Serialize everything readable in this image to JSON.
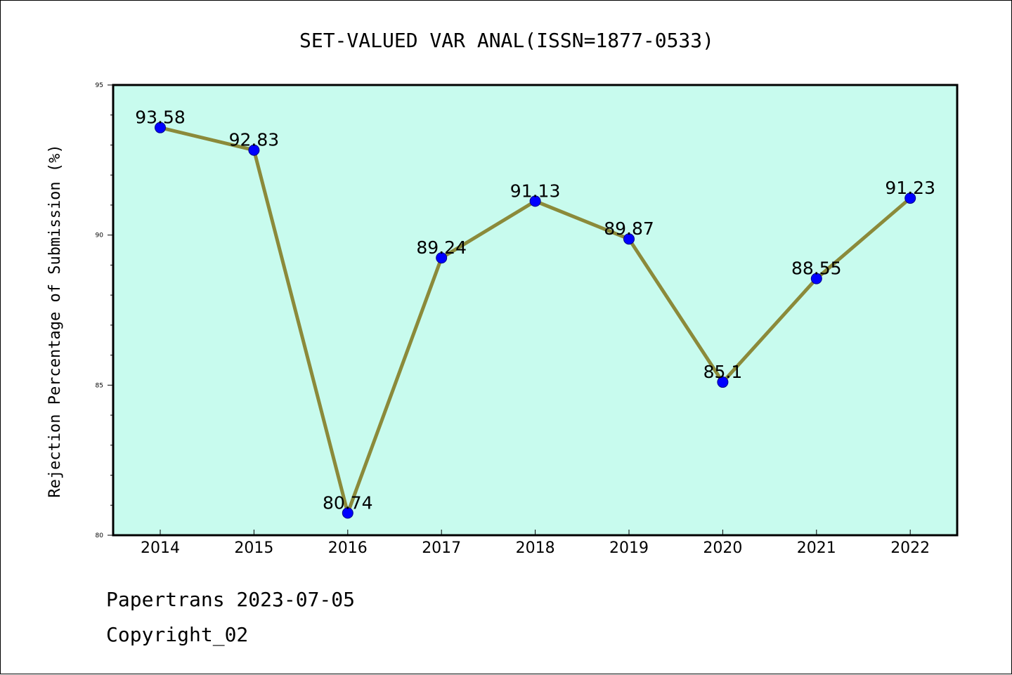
{
  "colors": {
    "plot_background": "#c8fbee",
    "line": "#8b8a3a",
    "marker": "#0000ff"
  },
  "footer": {
    "source": "Papertrans 2023-07-05",
    "copyright": "Copyright_02"
  },
  "chart_data": {
    "type": "line",
    "title": "SET-VALUED VAR ANAL(ISSN=1877-0533)",
    "xlabel": "",
    "ylabel": "Rejection Percentage of Submission (%)",
    "categories": [
      "2014",
      "2015",
      "2016",
      "2017",
      "2018",
      "2019",
      "2020",
      "2021",
      "2022"
    ],
    "values": [
      93.58,
      92.83,
      80.74,
      89.24,
      91.13,
      89.87,
      85.1,
      88.55,
      91.23
    ],
    "data_labels": [
      "93.58",
      "92.83",
      "80.74",
      "89.24",
      "91.13",
      "89.87",
      "85.1",
      "88.55",
      "91.23"
    ],
    "ylim": [
      80,
      95
    ],
    "yticks": [
      80,
      85,
      90,
      95
    ],
    "ytick_labels": [
      "80",
      "85",
      "90",
      "95"
    ],
    "grid": false,
    "legend": "none"
  }
}
